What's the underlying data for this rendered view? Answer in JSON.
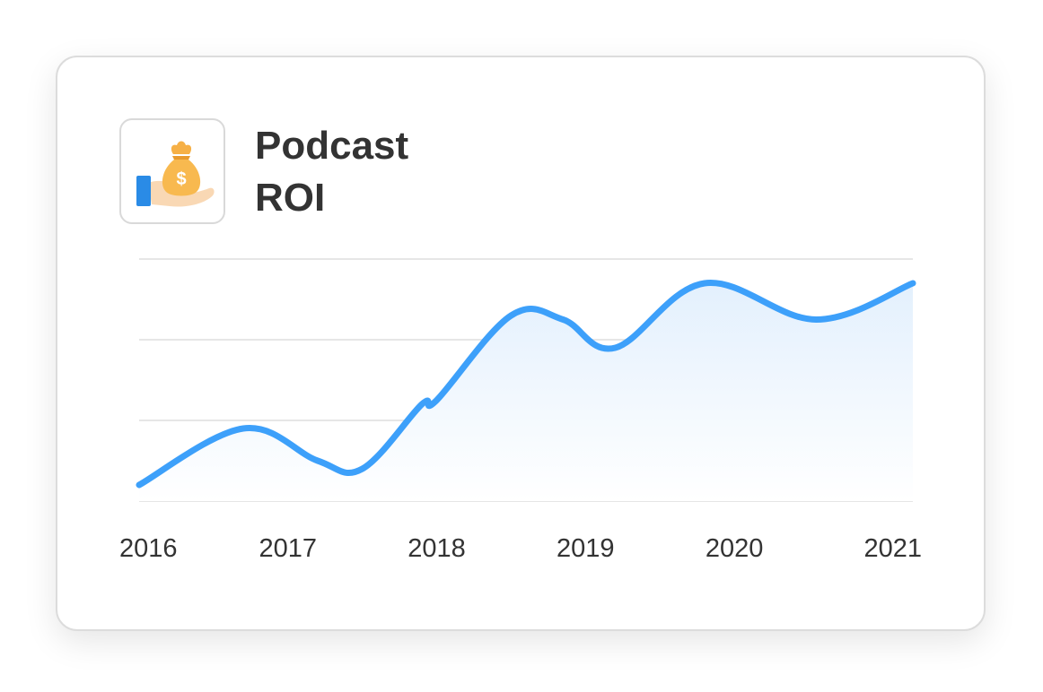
{
  "card": {
    "title_line1": "Podcast",
    "title_line2": "ROI",
    "icon": "money-bag-in-hand-icon"
  },
  "chart_data": {
    "type": "area",
    "title": "Podcast ROI",
    "xlabel": "",
    "ylabel": "",
    "x_ticks": [
      "2016",
      "2017",
      "2018",
      "2019",
      "2020",
      "2021"
    ],
    "xlim": [
      2016,
      2021.2
    ],
    "ylim": [
      0,
      30
    ],
    "y_tick_labels_shown": false,
    "grid": "horizontal",
    "legend": "none",
    "series": [
      {
        "points": [
          {
            "x": 2016.0,
            "y": 2.0
          },
          {
            "x": 2016.7,
            "y": 9.0
          },
          {
            "x": 2017.2,
            "y": 5.0
          },
          {
            "x": 2017.5,
            "y": 4.0
          },
          {
            "x": 2017.9,
            "y": 12.0
          },
          {
            "x": 2018.0,
            "y": 12.5
          },
          {
            "x": 2018.5,
            "y": 23.0
          },
          {
            "x": 2018.85,
            "y": 22.5
          },
          {
            "x": 2019.2,
            "y": 19.0
          },
          {
            "x": 2019.8,
            "y": 27.0
          },
          {
            "x": 2020.55,
            "y": 22.5
          },
          {
            "x": 2021.2,
            "y": 27.0
          }
        ]
      }
    ],
    "colors": {
      "line": "#3da0fa",
      "fill_top": "#e3f0fd",
      "grid": "#e6e6e6"
    }
  }
}
